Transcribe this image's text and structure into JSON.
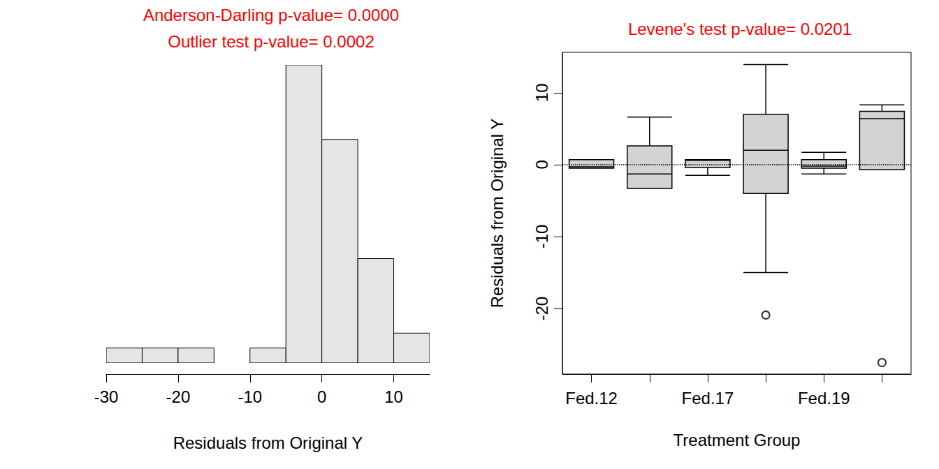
{
  "chart_data": [
    {
      "type": "histogram",
      "title": "Anderson-Darling p-value= 0.0000",
      "subtitle": "Outlier test p-value= 0.0002",
      "x_label": "Residuals from Original Y",
      "bins": [
        -30,
        -25,
        -20,
        -15,
        -10,
        -5,
        0,
        5,
        10,
        15
      ],
      "values": [
        1,
        1,
        1,
        0,
        1,
        20,
        15,
        7,
        2
      ],
      "color": "#e5e5e5",
      "xlim": [
        -30,
        15
      ],
      "xticks": [
        -30,
        -20,
        -10,
        0,
        10
      ],
      "ylim": [
        0,
        20
      ],
      "tick_labels": "x"
    },
    {
      "type": "boxplot",
      "title": "Levene's test p-value= 0.0201",
      "x_label": "Treatment Group",
      "y_label": "Residuals from Original Y",
      "categories": [
        "Fed.12",
        null,
        "Fed.17",
        null,
        "Fed.19",
        null
      ],
      "boxes": [
        [
          -0.5,
          -0.5,
          -0.3,
          0.7,
          0.7
        ],
        [
          -3.3,
          -3.3,
          -1.3,
          2.6,
          6.6
        ],
        [
          -1.5,
          -0.4,
          0.6,
          0.7,
          0.7
        ],
        [
          -15.0,
          -4.0,
          2.0,
          7.0,
          13.9
        ],
        [
          -1.3,
          -0.5,
          -0.2,
          0.7,
          1.7
        ],
        [
          -0.7,
          -0.7,
          6.4,
          7.4,
          8.3
        ]
      ],
      "outliers": [
        [],
        [],
        [],
        [
          -20.9
        ],
        [],
        [
          -27.5
        ]
      ],
      "reference_line": 0,
      "color": "#d3d3d3",
      "ylim": [
        -29.1,
        15.6
      ],
      "yticks": [
        -20,
        -10,
        0,
        10
      ]
    }
  ]
}
